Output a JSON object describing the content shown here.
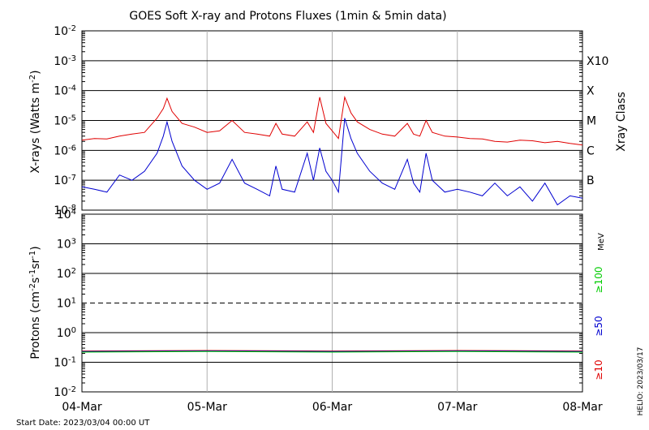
{
  "title": "GOES Soft X-ray and Protons Fluxes   (1min & 5min data)",
  "start_date_label": "Start Date: 2023/03/04 00:00 UT",
  "credit": "HELIO: 2023/03/17",
  "chart_data": [
    {
      "type": "line",
      "name": "xray",
      "ylabel_main": "X-rays (Watts m",
      "ylabel_sup": "-2",
      "ylabel_close": ")",
      "y_scale": "log",
      "ylim": [
        1e-08,
        0.01
      ],
      "y_ticks": [
        {
          "value": 1e-08,
          "base": "10",
          "exp": "-8"
        },
        {
          "value": 1e-07,
          "base": "10",
          "exp": "-7"
        },
        {
          "value": 1e-06,
          "base": "10",
          "exp": "-6"
        },
        {
          "value": 1e-05,
          "base": "10",
          "exp": "-5"
        },
        {
          "value": 0.0001,
          "base": "10",
          "exp": "-4"
        },
        {
          "value": 0.001,
          "base": "10",
          "exp": "-3"
        },
        {
          "value": 0.01,
          "base": "10",
          "exp": "-2"
        }
      ],
      "xlim_days": [
        0,
        4
      ],
      "x_labels": [
        "04-Mar",
        "05-Mar",
        "06-Mar",
        "07-Mar",
        "08-Mar"
      ],
      "class_axis_title": "Xray Class",
      "classes": [
        {
          "label": "B",
          "value": 1e-07
        },
        {
          "label": "C",
          "value": 1e-06
        },
        {
          "label": "M",
          "value": 1e-05
        },
        {
          "label": "X",
          "value": 0.0001
        },
        {
          "label": "X10",
          "value": 0.001
        }
      ],
      "grid": true,
      "series": [
        {
          "color": "#e00000",
          "points": [
            [
              0.0,
              2.2e-06
            ],
            [
              0.1,
              2.5e-06
            ],
            [
              0.2,
              2.4e-06
            ],
            [
              0.3,
              3e-06
            ],
            [
              0.4,
              3.5e-06
            ],
            [
              0.5,
              4e-06
            ],
            [
              0.6,
              1.2e-05
            ],
            [
              0.65,
              2.5e-05
            ],
            [
              0.68,
              5.5e-05
            ],
            [
              0.72,
              2e-05
            ],
            [
              0.8,
              8e-06
            ],
            [
              0.9,
              6e-06
            ],
            [
              1.0,
              4e-06
            ],
            [
              1.1,
              4.5e-06
            ],
            [
              1.2,
              1e-05
            ],
            [
              1.3,
              4e-06
            ],
            [
              1.4,
              3.5e-06
            ],
            [
              1.5,
              3e-06
            ],
            [
              1.55,
              8e-06
            ],
            [
              1.6,
              3.5e-06
            ],
            [
              1.7,
              3e-06
            ],
            [
              1.8,
              9e-06
            ],
            [
              1.85,
              4e-06
            ],
            [
              1.9,
              6e-05
            ],
            [
              1.95,
              8e-06
            ],
            [
              2.0,
              4.5e-06
            ],
            [
              2.05,
              2.5e-06
            ],
            [
              2.1,
              6e-05
            ],
            [
              2.15,
              1.8e-05
            ],
            [
              2.2,
              9e-06
            ],
            [
              2.3,
              5e-06
            ],
            [
              2.4,
              3.5e-06
            ],
            [
              2.5,
              3e-06
            ],
            [
              2.6,
              8e-06
            ],
            [
              2.65,
              3.5e-06
            ],
            [
              2.7,
              3e-06
            ],
            [
              2.75,
              1e-05
            ],
            [
              2.8,
              4e-06
            ],
            [
              2.9,
              3e-06
            ],
            [
              3.0,
              2.8e-06
            ],
            [
              3.1,
              2.5e-06
            ],
            [
              3.2,
              2.4e-06
            ],
            [
              3.3,
              2e-06
            ],
            [
              3.4,
              1.9e-06
            ],
            [
              3.5,
              2.2e-06
            ],
            [
              3.6,
              2.1e-06
            ],
            [
              3.7,
              1.8e-06
            ],
            [
              3.8,
              2e-06
            ],
            [
              3.9,
              1.7e-06
            ],
            [
              4.0,
              1.5e-06
            ]
          ]
        },
        {
          "color": "#0000d0",
          "points": [
            [
              0.0,
              6e-08
            ],
            [
              0.1,
              5e-08
            ],
            [
              0.2,
              4e-08
            ],
            [
              0.3,
              1.5e-07
            ],
            [
              0.4,
              1e-07
            ],
            [
              0.5,
              2e-07
            ],
            [
              0.6,
              8e-07
            ],
            [
              0.65,
              3e-06
            ],
            [
              0.68,
              9e-06
            ],
            [
              0.72,
              2e-06
            ],
            [
              0.8,
              3e-07
            ],
            [
              0.9,
              1e-07
            ],
            [
              1.0,
              5e-08
            ],
            [
              1.1,
              8e-08
            ],
            [
              1.2,
              5e-07
            ],
            [
              1.3,
              8e-08
            ],
            [
              1.4,
              5e-08
            ],
            [
              1.5,
              3e-08
            ],
            [
              1.55,
              3e-07
            ],
            [
              1.6,
              5e-08
            ],
            [
              1.7,
              4e-08
            ],
            [
              1.8,
              8e-07
            ],
            [
              1.85,
              1e-07
            ],
            [
              1.9,
              1.2e-06
            ],
            [
              1.95,
              2e-07
            ],
            [
              2.0,
              1e-07
            ],
            [
              2.05,
              4e-08
            ],
            [
              2.1,
              1.2e-05
            ],
            [
              2.15,
              2.5e-06
            ],
            [
              2.2,
              8e-07
            ],
            [
              2.3,
              2e-07
            ],
            [
              2.4,
              8e-08
            ],
            [
              2.5,
              5e-08
            ],
            [
              2.6,
              5e-07
            ],
            [
              2.65,
              8e-08
            ],
            [
              2.7,
              4e-08
            ],
            [
              2.75,
              8e-07
            ],
            [
              2.8,
              1e-07
            ],
            [
              2.9,
              4e-08
            ],
            [
              3.0,
              5e-08
            ],
            [
              3.1,
              4e-08
            ],
            [
              3.2,
              3e-08
            ],
            [
              3.3,
              8e-08
            ],
            [
              3.4,
              3e-08
            ],
            [
              3.5,
              6e-08
            ],
            [
              3.6,
              2e-08
            ],
            [
              3.7,
              8e-08
            ],
            [
              3.8,
              1.5e-08
            ],
            [
              3.9,
              3e-08
            ],
            [
              4.0,
              2.5e-08
            ]
          ]
        }
      ]
    },
    {
      "type": "line",
      "name": "protons",
      "ylabel_main": "Protons (cm",
      "ylabel_sup1": "-2",
      "ylabel_mid": "s",
      "ylabel_sup2": "-1",
      "ylabel_mid2": "sr",
      "ylabel_sup3": "-1",
      "ylabel_close": ")",
      "y_scale": "log",
      "ylim": [
        0.01,
        10000.0
      ],
      "y_ticks": [
        {
          "value": 0.01,
          "base": "10",
          "exp": "-2"
        },
        {
          "value": 0.1,
          "base": "10",
          "exp": "-1"
        },
        {
          "value": 1.0,
          "base": "10",
          "exp": "0"
        },
        {
          "value": 10.0,
          "base": "10",
          "exp": "1"
        },
        {
          "value": 100.0,
          "base": "10",
          "exp": "2"
        },
        {
          "value": 1000.0,
          "base": "10",
          "exp": "3"
        },
        {
          "value": 10000.0,
          "base": "10",
          "exp": "4"
        }
      ],
      "xlim_days": [
        0,
        4
      ],
      "x_labels": [
        "04-Mar",
        "05-Mar",
        "06-Mar",
        "07-Mar",
        "08-Mar"
      ],
      "threshold_dashed": 10,
      "energy_unit": "MeV",
      "energy_labels": [
        {
          "label": "≥100",
          "color": "#00cc00"
        },
        {
          "label": "≥50",
          "color": "#0000d0"
        },
        {
          "label": "≥10",
          "color": "#e00000"
        }
      ],
      "grid": true,
      "series": [
        {
          "color": "#e00000",
          "points": [
            [
              0,
              0.24
            ],
            [
              1,
              0.25
            ],
            [
              2,
              0.24
            ],
            [
              3,
              0.25
            ],
            [
              4,
              0.24
            ]
          ]
        },
        {
          "color": "#0000d0",
          "points": [
            [
              0,
              0.23
            ],
            [
              1,
              0.24
            ],
            [
              2,
              0.23
            ],
            [
              3,
              0.24
            ],
            [
              4,
              0.23
            ]
          ]
        },
        {
          "color": "#00cc00",
          "points": [
            [
              0,
              0.22
            ],
            [
              1,
              0.23
            ],
            [
              2,
              0.22
            ],
            [
              3,
              0.23
            ],
            [
              4,
              0.22
            ]
          ]
        }
      ]
    }
  ]
}
